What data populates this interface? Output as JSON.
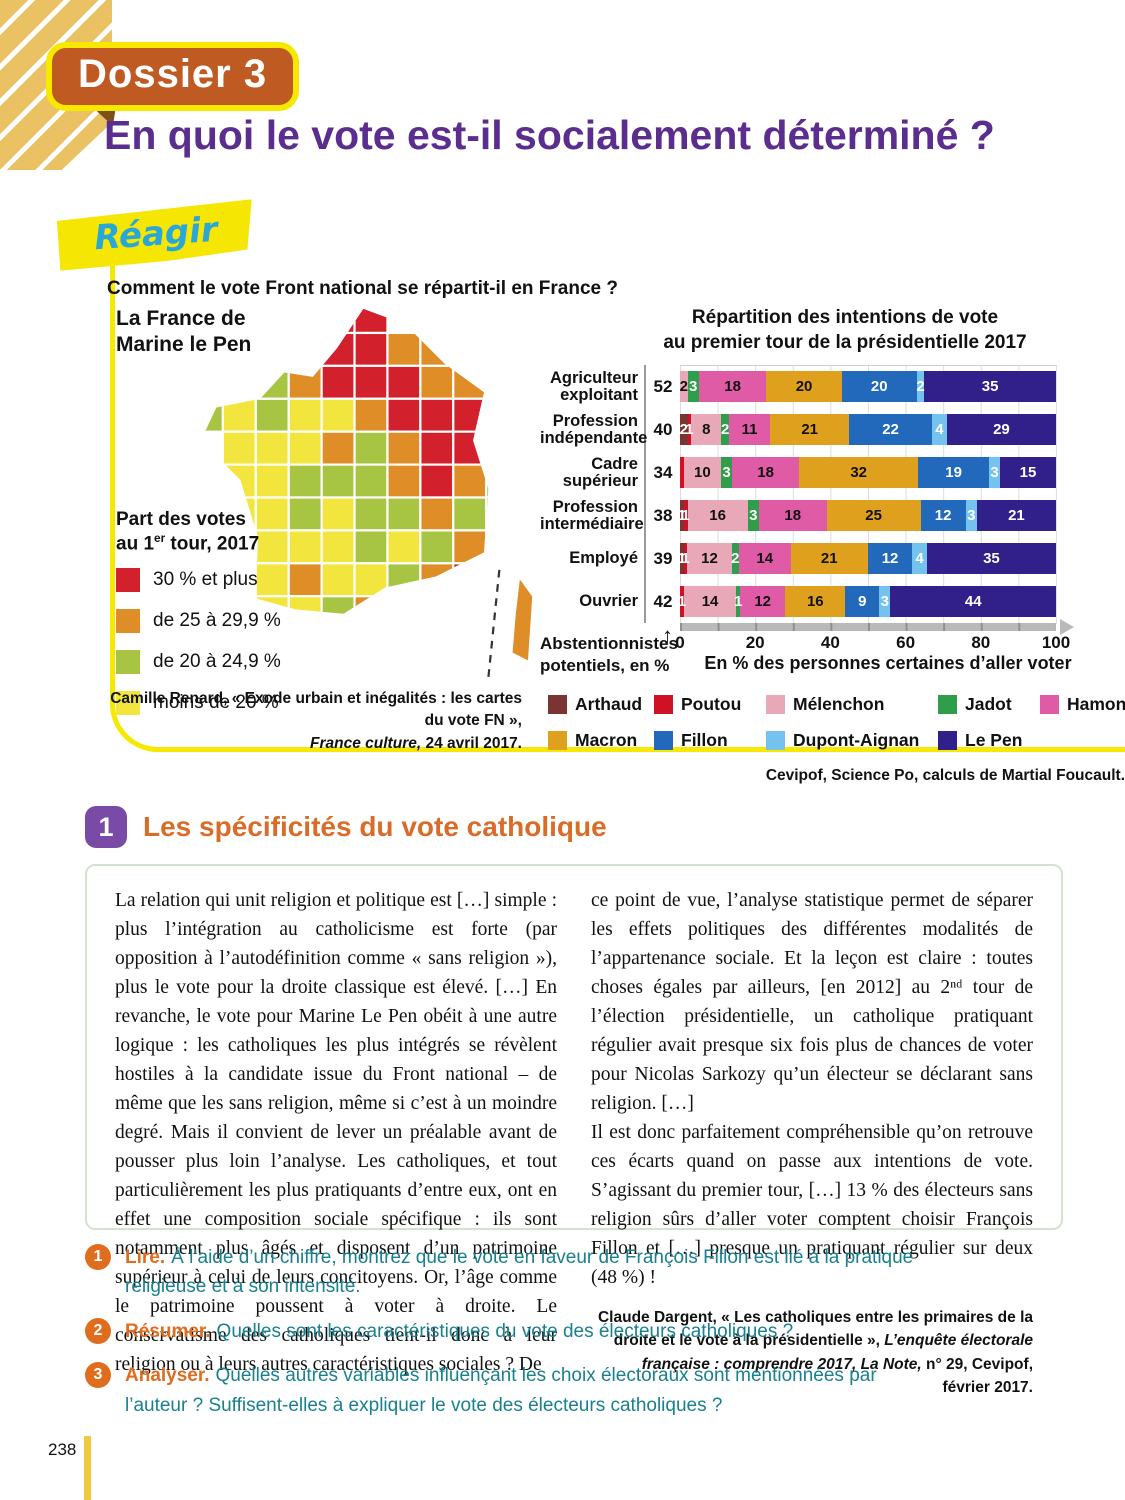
{
  "page": {
    "number": "238"
  },
  "header": {
    "badge": "Dossier 3",
    "title": "En quoi le vote est-il socialement déterminé ?"
  },
  "reagir": {
    "banner": "Réagir",
    "question": "Comment le vote Front national se répartit-il en France ?"
  },
  "map": {
    "heading_line1": "La France de",
    "heading_line2": "Marine le Pen",
    "legend_title_line1": "Part des votes",
    "legend_title_line2_pre": "au 1",
    "legend_title_sup": "er",
    "legend_title_line2_post": " tour, 2017",
    "legend_items": [
      {
        "label": "30 % et plus",
        "color": "#d2202c"
      },
      {
        "label": "de 25 à 29,9 %",
        "color": "#df8d26"
      },
      {
        "label": "de 20 à 24,9 %",
        "color": "#a7c542"
      },
      {
        "label": "moins de 20 %",
        "color": "#f2e53d"
      }
    ],
    "palette": {
      "R": "#d2202c",
      "O": "#df8d26",
      "G": "#a7c542",
      "Y": "#f2e53d"
    },
    "pattern": [
      "....RR.....",
      "...RRROO...",
      ".GGORRROO..",
      "GYGYYORRRO.",
      ".YYYOGORRO.",
      ".YYGGGOROG.",
      "YYYGYGGOGG.",
      ".YYYYGYGOG.",
      ".YYOYYGORO.",
      "..YYGOORRO.",
      "...YOOR....",
      "..........."
    ],
    "source_line1": "Camille Renard, « Exode urbain et inégalités : les cartes du vote FN »,",
    "source_italic": "France culture,",
    "source_end": " 24 avril 2017."
  },
  "chart_data": {
    "type": "bar",
    "stacked": true,
    "title_line1": "Répartition des intentions de vote",
    "title_line2": "au premier tour de la présidentielle 2017",
    "x_axis": {
      "range": [
        0,
        100
      ],
      "ticks": [
        0,
        20,
        40,
        60,
        80,
        100
      ],
      "label": "En % des personnes certaines d’aller voter"
    },
    "left_note_line1": "Abstentionnistes",
    "left_note_line2": "potentiels, en %",
    "arrow_up": "↑",
    "legend": [
      {
        "name": "Arthaud",
        "color": "#7b3431",
        "text": "#ffffff"
      },
      {
        "name": "Poutou",
        "color": "#cf1126",
        "text": "#ffffff"
      },
      {
        "name": "Mélenchon",
        "color": "#e9a8b7",
        "text": "#111111"
      },
      {
        "name": "Jadot",
        "color": "#2e9e4a",
        "text": "#ffffff"
      },
      {
        "name": "Hamon",
        "color": "#df5ba6",
        "text": "#111111"
      },
      {
        "name": "Macron",
        "color": "#dfa01e",
        "text": "#111111"
      },
      {
        "name": "Fillon",
        "color": "#2268bb",
        "text": "#ffffff"
      },
      {
        "name": "Dupont-Aignan",
        "color": "#74c2ee",
        "text": "#ffffff"
      },
      {
        "name": "Le Pen",
        "color": "#31208a",
        "text": "#ffffff"
      }
    ],
    "rows": [
      {
        "category": "Agriculteur|exploitant",
        "abstention": 52,
        "segments": [
          {
            "party": "Mélenchon",
            "value": 2
          },
          {
            "party": "Jadot",
            "value": 3
          },
          {
            "party": "Hamon",
            "value": 18
          },
          {
            "party": "Macron",
            "value": 20
          },
          {
            "party": "Fillon",
            "value": 20
          },
          {
            "party": "Dupont-Aignan",
            "value": 2
          },
          {
            "party": "Le Pen",
            "value": 35
          }
        ]
      },
      {
        "category": "Profession|indépendante",
        "abstention": 40,
        "segments": [
          {
            "party": "Arthaud",
            "value": 2
          },
          {
            "party": "Poutou",
            "value": 1
          },
          {
            "party": "Mélenchon",
            "value": 8
          },
          {
            "party": "Jadot",
            "value": 2
          },
          {
            "party": "Hamon",
            "value": 11
          },
          {
            "party": "Macron",
            "value": 21
          },
          {
            "party": "Fillon",
            "value": 22
          },
          {
            "party": "Dupont-Aignan",
            "value": 4
          },
          {
            "party": "Le Pen",
            "value": 29
          }
        ]
      },
      {
        "category": "Cadre|supérieur",
        "abstention": 34,
        "segments": [
          {
            "party": "Poutou",
            "value": 1,
            "show_label": false
          },
          {
            "party": "Mélenchon",
            "value": 10
          },
          {
            "party": "Jadot",
            "value": 3
          },
          {
            "party": "Hamon",
            "value": 18
          },
          {
            "party": "Macron",
            "value": 32
          },
          {
            "party": "Fillon",
            "value": 19
          },
          {
            "party": "Dupont-Aignan",
            "value": 3
          },
          {
            "party": "Le Pen",
            "value": 15
          }
        ]
      },
      {
        "category": "Profession|intermédiaire",
        "abstention": 38,
        "segments": [
          {
            "party": "Arthaud",
            "value": 1
          },
          {
            "party": "Poutou",
            "value": 1
          },
          {
            "party": "Mélenchon",
            "value": 16
          },
          {
            "party": "Jadot",
            "value": 3
          },
          {
            "party": "Hamon",
            "value": 18
          },
          {
            "party": "Macron",
            "value": 25
          },
          {
            "party": "Fillon",
            "value": 12
          },
          {
            "party": "Dupont-Aignan",
            "value": 3
          },
          {
            "party": "Le Pen",
            "value": 21
          }
        ]
      },
      {
        "category": "Employé",
        "abstention": 39,
        "segments": [
          {
            "party": "Arthaud",
            "value": 1
          },
          {
            "party": "Poutou",
            "value": 1
          },
          {
            "party": "Mélenchon",
            "value": 12
          },
          {
            "party": "Jadot",
            "value": 2
          },
          {
            "party": "Hamon",
            "value": 14
          },
          {
            "party": "Macron",
            "value": 21
          },
          {
            "party": "Fillon",
            "value": 12
          },
          {
            "party": "Dupont-Aignan",
            "value": 4
          },
          {
            "party": "Le Pen",
            "value": 35
          }
        ]
      },
      {
        "category": "Ouvrier",
        "abstention": 42,
        "segments": [
          {
            "party": "Poutou",
            "value": 1
          },
          {
            "party": "Mélenchon",
            "value": 14
          },
          {
            "party": "Jadot",
            "value": 1
          },
          {
            "party": "Hamon",
            "value": 12
          },
          {
            "party": "Macron",
            "value": 16
          },
          {
            "party": "Fillon",
            "value": 9
          },
          {
            "party": "Dupont-Aignan",
            "value": 3
          },
          {
            "party": "Le Pen",
            "value": 44
          }
        ]
      }
    ],
    "source": "Cevipof, Science Po, calculs de Martial Foucault."
  },
  "section": {
    "number": "1",
    "title": "Les spécificités du vote catholique",
    "col1": "La relation qui unit religion et politique est […] simple : plus l’intégration au catholicisme est forte (par opposition à l’autodéfinition comme « sans religion »), plus le vote pour la droite classique est élevé. […] En revanche, le vote pour Marine Le Pen obéit à une autre logique : les catholiques les plus intégrés se révèlent hostiles à la candidate issue du Front national – de même que les sans religion, même si c’est à un moindre degré. Mais il convient de lever un préalable avant de pousser plus loin l’analyse. Les catholiques, et tout particulièrement les plus pratiquants d’entre eux, ont en effet une composition sociale spécifique : ils sont notamment plus âgés et disposent d’un patrimoine supérieur à celui de leurs concitoyens. Or, l’âge comme le patrimoine poussent à voter à droite. Le conservatisme des catholiques tient-il donc à leur religion ou à leurs autres caractéristiques sociales ? De",
    "col2_p1": "ce point de vue, l’analyse statistique permet de séparer les effets politiques des différentes modalités de l’appartenance sociale. Et la leçon est claire : toutes choses égales par ailleurs, [en 2012] au 2ⁿᵈ tour de l’élection présidentielle, un catholique pratiquant régulier avait presque six fois plus de chances de voter pour Nicolas Sarkozy qu’un électeur se déclarant sans religion. […]",
    "col2_p2": "Il est donc parfaitement compréhensible qu’on retrouve ces écarts quand on passe aux intentions de vote. S’agissant du premier tour, […] 13 % des électeurs sans religion sûrs d’aller voter comptent choisir François Fillon et […] presque un pratiquant régulier sur deux (48 %) !",
    "citation_pre": "Claude Dargent, « Les catholiques entre les primaires de la droite et le vote à la présidentielle », ",
    "citation_italic": "L’enquête électorale française : comprendre 2017, La Note,",
    "citation_end": " n° 29, Cevipof, février 2017."
  },
  "questions": [
    {
      "num": "1",
      "label": "Lire.",
      "text": "À l’aide d’un chiffre, montrez que le vote en faveur de François Fillon est lié à la pratique religieuse et à son intensité."
    },
    {
      "num": "2",
      "label": "Résumer.",
      "text": "Quelles sont les caractéristiques du vote des électeurs catholiques ?"
    },
    {
      "num": "3",
      "label": "Analyser.",
      "text": "Quelles autres variables influençant les choix électoraux sont mentionnées par l’auteur ? Suffisent-elles à expliquer le vote des électeurs catholiques ?"
    }
  ]
}
